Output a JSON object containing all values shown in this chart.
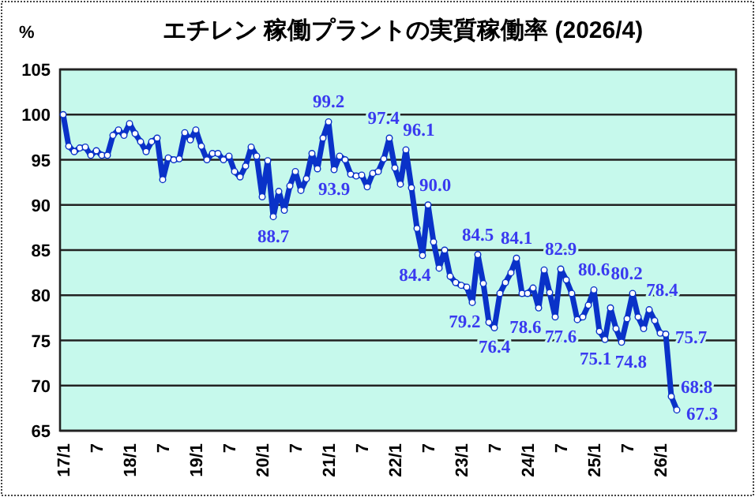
{
  "chart_data": {
    "type": "line",
    "title": "エチレン  稼働プラントの実質稼働率 (2026/4)",
    "ylabel": "%",
    "categories": [
      "17/1",
      null,
      null,
      null,
      null,
      null,
      "7",
      null,
      null,
      null,
      null,
      null,
      "18/1",
      null,
      null,
      null,
      null,
      null,
      "7",
      null,
      null,
      null,
      null,
      null,
      "19/1",
      null,
      null,
      null,
      null,
      null,
      "7",
      null,
      null,
      null,
      null,
      null,
      "20/1",
      null,
      null,
      null,
      null,
      null,
      "7",
      null,
      null,
      null,
      null,
      null,
      "21/1",
      null,
      null,
      null,
      null,
      null,
      "7",
      null,
      null,
      null,
      null,
      null,
      "22/1",
      null,
      null,
      null,
      null,
      null,
      "7",
      null,
      null,
      null,
      null,
      null,
      "23/1",
      null,
      null,
      null,
      null,
      null,
      "7",
      null,
      null,
      null,
      null,
      null,
      "24/1",
      null,
      null,
      null,
      null,
      null,
      "7",
      null,
      null,
      null,
      null,
      null,
      "25/1",
      null,
      null,
      null,
      null,
      null,
      "7",
      null,
      null,
      null,
      null,
      null,
      "26/1",
      null,
      null,
      null
    ],
    "values": [
      100.0,
      96.5,
      95.9,
      96.3,
      96.4,
      95.5,
      96.0,
      95.5,
      95.5,
      97.7,
      98.3,
      97.7,
      99.0,
      97.9,
      97.0,
      95.9,
      97.0,
      97.4,
      92.8,
      95.2,
      95.0,
      95.1,
      98.0,
      97.2,
      98.3,
      96.5,
      95.0,
      95.7,
      95.7,
      95.0,
      95.4,
      93.7,
      93.1,
      94.3,
      96.4,
      95.4,
      90.9,
      94.9,
      88.7,
      91.5,
      89.4,
      92.1,
      93.7,
      91.6,
      92.9,
      95.7,
      94.0,
      97.4,
      99.2,
      93.9,
      95.4,
      95.0,
      93.4,
      93.2,
      93.3,
      92.0,
      93.5,
      93.7,
      95.1,
      97.4,
      94.1,
      92.3,
      96.1,
      91.9,
      87.4,
      84.4,
      90.0,
      85.9,
      83.0,
      85.0,
      82.1,
      81.4,
      81.1,
      80.9,
      79.2,
      84.5,
      81.3,
      77.0,
      76.4,
      80.2,
      81.4,
      82.5,
      84.1,
      80.2,
      80.2,
      80.8,
      78.6,
      82.8,
      80.3,
      77.6,
      82.9,
      81.7,
      80.2,
      77.3,
      77.6,
      78.9,
      80.6,
      76.0,
      75.1,
      78.6,
      76.3,
      74.8,
      77.4,
      80.2,
      77.6,
      76.3,
      78.4,
      77.2,
      75.8,
      75.7,
      68.8,
      67.3
    ],
    "value_labels": [
      null,
      null,
      null,
      null,
      null,
      null,
      null,
      null,
      null,
      null,
      null,
      null,
      null,
      null,
      null,
      null,
      null,
      null,
      null,
      null,
      null,
      null,
      null,
      null,
      null,
      null,
      null,
      null,
      null,
      null,
      null,
      null,
      null,
      null,
      null,
      null,
      null,
      null,
      "88.7",
      null,
      null,
      null,
      null,
      null,
      null,
      null,
      null,
      null,
      "99.2",
      "93.9",
      null,
      null,
      null,
      null,
      null,
      null,
      null,
      null,
      null,
      "97.4",
      null,
      null,
      "96.1",
      null,
      null,
      "84.4",
      "90.0",
      null,
      null,
      null,
      null,
      null,
      null,
      null,
      "79.2",
      "84.5",
      null,
      null,
      "76.4",
      null,
      null,
      null,
      "84.1",
      null,
      null,
      null,
      "78.6",
      null,
      null,
      "77.6",
      "82.9",
      null,
      null,
      null,
      null,
      null,
      "80.6",
      null,
      "75.1",
      null,
      null,
      "74.8",
      null,
      "80.2",
      null,
      null,
      "78.4",
      null,
      null,
      "75.7",
      "68.8",
      "67.3"
    ],
    "color": "#0a32c8",
    "marker": "circle",
    "grid": "y",
    "ylim": [
      65,
      105
    ],
    "yticks": [
      65,
      70,
      75,
      80,
      85,
      90,
      95,
      100,
      105
    ]
  }
}
